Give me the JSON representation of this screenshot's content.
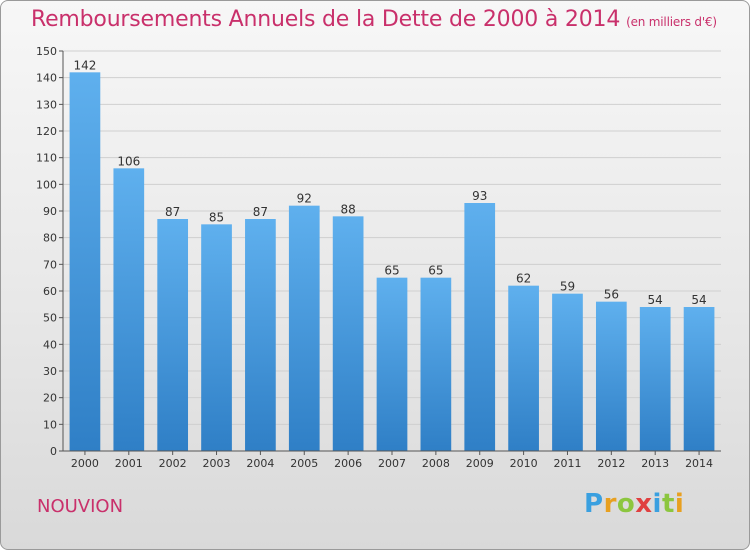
{
  "chart_data": {
    "type": "bar",
    "title": "Remboursements Annuels de la Dette de 2000 à 2014",
    "subtitle": "(en milliers d'€)",
    "categories": [
      "2000",
      "2001",
      "2002",
      "2003",
      "2004",
      "2005",
      "2006",
      "2007",
      "2008",
      "2009",
      "2010",
      "2011",
      "2012",
      "2013",
      "2014"
    ],
    "values": [
      142,
      106,
      87,
      85,
      87,
      92,
      88,
      65,
      65,
      93,
      62,
      59,
      56,
      54,
      54
    ],
    "ylim": [
      0,
      150
    ],
    "yticks": [
      0,
      10,
      20,
      30,
      40,
      50,
      60,
      70,
      80,
      90,
      100,
      110,
      120,
      130,
      140,
      150
    ],
    "grid": true,
    "bar_color": "#4f9fe0"
  },
  "commune": "NOUVION",
  "logo": {
    "text": "Proxiti",
    "letters": [
      "P",
      "r",
      "o",
      "x",
      "i",
      "t",
      "i"
    ]
  }
}
